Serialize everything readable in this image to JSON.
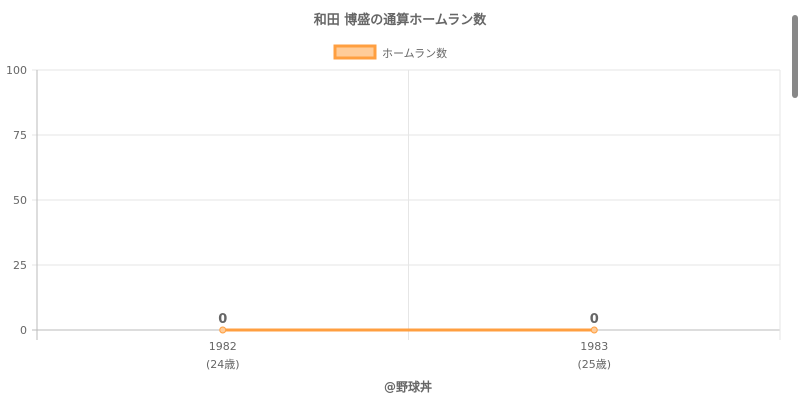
{
  "chart_data": {
    "type": "line",
    "title": "和田 博盛の通算ホームラン数",
    "categories": [
      "1982",
      "1983"
    ],
    "category_sublabels": [
      "(24歳)",
      "(25歳)"
    ],
    "series": [
      {
        "name": "ホームラン数",
        "values": [
          0,
          0
        ],
        "data_labels": [
          "0",
          "0"
        ]
      }
    ],
    "yticks": [
      "0",
      "25",
      "50",
      "75",
      "100"
    ],
    "ylim": [
      0,
      100
    ],
    "grid": true,
    "legend": "top",
    "colors": {
      "line": "#ff9f40",
      "fill": "#ffcc99",
      "grid": "#e6e6e6",
      "text": "#666666"
    }
  },
  "credit": "@野球丼"
}
